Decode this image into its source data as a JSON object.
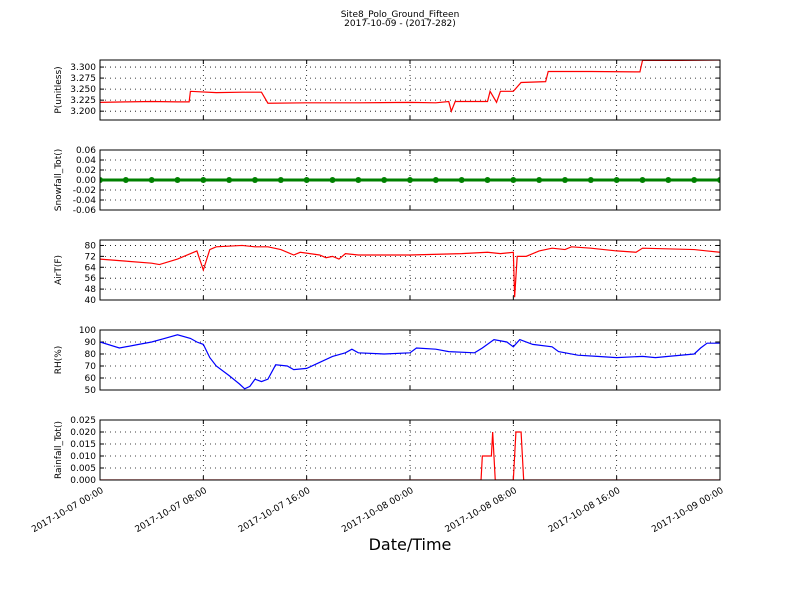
{
  "title": "Site8_Polo_Ground_Fifteen",
  "subtitle": "2017-10-09 - (2017-282)",
  "chart_data": [
    {
      "type": "line",
      "ylabel": "P(unitless)",
      "color": "#ff0000",
      "grid": true,
      "ylim": [
        3.18,
        3.316
      ],
      "yticks": [
        {
          "value": 3.2,
          "label": "3.200"
        },
        {
          "value": 3.225,
          "label": "3.225"
        },
        {
          "value": 3.25,
          "label": "3.250"
        },
        {
          "value": 3.275,
          "label": "3.275"
        },
        {
          "value": 3.3,
          "label": "3.300"
        }
      ],
      "x": [
        "2017-10-07 00:00",
        "2017-10-07 02:00",
        "2017-10-07 04:00",
        "2017-10-07 06:00",
        "2017-10-07 06:54",
        "2017-10-07 07:00",
        "2017-10-07 09:00",
        "2017-10-07 11:00",
        "2017-10-07 12:30",
        "2017-10-07 13:00",
        "2017-10-07 16:00",
        "2017-10-07 20:00",
        "2017-10-08 00:00",
        "2017-10-08 02:00",
        "2017-10-08 03:00",
        "2017-10-08 03:12",
        "2017-10-08 03:30",
        "2017-10-08 05:00",
        "2017-10-08 06:00",
        "2017-10-08 06:12",
        "2017-10-08 06:42",
        "2017-10-08 07:00",
        "2017-10-08 08:00",
        "2017-10-08 08:36",
        "2017-10-08 10:30",
        "2017-10-08 10:42",
        "2017-10-08 14:00",
        "2017-10-08 17:48",
        "2017-10-08 18:00",
        "2017-10-08 21:00",
        "2017-10-09 00:00"
      ],
      "values": [
        3.22,
        3.221,
        3.222,
        3.221,
        3.221,
        3.245,
        3.242,
        3.243,
        3.243,
        3.218,
        3.219,
        3.219,
        3.22,
        3.219,
        3.222,
        3.2,
        3.222,
        3.222,
        3.222,
        3.245,
        3.22,
        3.245,
        3.245,
        3.265,
        3.267,
        3.29,
        3.29,
        3.289,
        3.315,
        3.315,
        3.316
      ]
    },
    {
      "type": "line-markers",
      "ylabel": "Snowfall_Tot()",
      "color": "#008000",
      "grid": true,
      "ylim": [
        -0.06,
        0.06
      ],
      "yticks": [
        -0.06,
        -0.04,
        -0.02,
        {
          "value": 0,
          "label": "0.00"
        },
        0.02,
        0.04,
        0.06
      ],
      "x": [
        "2017-10-07 00:00",
        "2017-10-07 02:00",
        "2017-10-07 04:00",
        "2017-10-07 06:00",
        "2017-10-07 08:00",
        "2017-10-07 10:00",
        "2017-10-07 12:00",
        "2017-10-07 14:00",
        "2017-10-07 16:00",
        "2017-10-07 18:00",
        "2017-10-07 20:00",
        "2017-10-07 22:00",
        "2017-10-08 00:00",
        "2017-10-08 02:00",
        "2017-10-08 04:00",
        "2017-10-08 06:00",
        "2017-10-08 08:00",
        "2017-10-08 10:00",
        "2017-10-08 12:00",
        "2017-10-08 14:00",
        "2017-10-08 16:00",
        "2017-10-08 18:00",
        "2017-10-08 20:00",
        "2017-10-08 22:00",
        "2017-10-09 00:00"
      ],
      "values": [
        0,
        0,
        0,
        0,
        0,
        0,
        0,
        0,
        0,
        0,
        0,
        0,
        0,
        0,
        0,
        0,
        0,
        0,
        0,
        0,
        0,
        0,
        0,
        0,
        0
      ]
    },
    {
      "type": "line",
      "ylabel": "AirT(F)",
      "color": "#ff0000",
      "grid": true,
      "ylim": [
        40,
        84
      ],
      "yticks": [
        40,
        48,
        56,
        64,
        72,
        80
      ],
      "x": [
        "2017-10-07 00:00",
        "2017-10-07 02:00",
        "2017-10-07 04:00",
        "2017-10-07 04:36",
        "2017-10-07 06:00",
        "2017-10-07 07:30",
        "2017-10-07 08:00",
        "2017-10-07 08:30",
        "2017-10-07 09:00",
        "2017-10-07 11:00",
        "2017-10-07 12:00",
        "2017-10-07 13:00",
        "2017-10-07 14:00",
        "2017-10-07 15:00",
        "2017-10-07 15:30",
        "2017-10-07 17:00",
        "2017-10-07 17:30",
        "2017-10-07 18:00",
        "2017-10-07 18:30",
        "2017-10-07 19:00",
        "2017-10-07 20:00",
        "2017-10-08 00:00",
        "2017-10-08 04:00",
        "2017-10-08 06:00",
        "2017-10-08 07:00",
        "2017-10-08 08:00",
        "2017-10-08 08:06",
        "2017-10-08 08:18",
        "2017-10-08 09:00",
        "2017-10-08 10:00",
        "2017-10-08 11:00",
        "2017-10-08 12:00",
        "2017-10-08 12:30",
        "2017-10-08 14:00",
        "2017-10-08 16:00",
        "2017-10-08 17:30",
        "2017-10-08 18:00",
        "2017-10-08 22:00",
        "2017-10-08 23:00",
        "2017-10-09 00:00"
      ],
      "values": [
        70,
        68.5,
        67,
        66,
        70,
        76,
        62,
        77,
        79,
        80,
        79,
        79,
        77,
        73,
        75,
        73,
        71,
        72,
        70,
        74,
        73,
        73,
        74,
        75,
        74,
        75,
        42,
        72,
        72,
        76,
        78,
        77,
        79,
        78,
        76,
        75,
        78,
        77,
        76,
        75
      ]
    },
    {
      "type": "line",
      "ylabel": "RH(%)",
      "color": "#0000ff",
      "grid": true,
      "ylim": [
        50,
        100
      ],
      "yticks": [
        50,
        60,
        70,
        80,
        90,
        100
      ],
      "x": [
        "2017-10-07 00:00",
        "2017-10-07 01:30",
        "2017-10-07 03:00",
        "2017-10-07 04:00",
        "2017-10-07 05:00",
        "2017-10-07 06:00",
        "2017-10-07 07:00",
        "2017-10-07 07:30",
        "2017-10-07 08:00",
        "2017-10-07 08:30",
        "2017-10-07 09:00",
        "2017-10-07 10:00",
        "2017-10-07 10:48",
        "2017-10-07 11:12",
        "2017-10-07 11:36",
        "2017-10-07 12:00",
        "2017-10-07 12:30",
        "2017-10-07 13:00",
        "2017-10-07 13:36",
        "2017-10-07 14:30",
        "2017-10-07 15:00",
        "2017-10-07 16:00",
        "2017-10-07 17:00",
        "2017-10-07 18:00",
        "2017-10-07 19:00",
        "2017-10-07 19:30",
        "2017-10-07 20:00",
        "2017-10-07 22:00",
        "2017-10-08 00:00",
        "2017-10-08 00:30",
        "2017-10-08 02:00",
        "2017-10-08 03:00",
        "2017-10-08 05:00",
        "2017-10-08 05:36",
        "2017-10-08 06:30",
        "2017-10-08 07:30",
        "2017-10-08 08:00",
        "2017-10-08 08:30",
        "2017-10-08 09:30",
        "2017-10-08 11:00",
        "2017-10-08 11:30",
        "2017-10-08 13:00",
        "2017-10-08 14:30",
        "2017-10-08 16:00",
        "2017-10-08 18:00",
        "2017-10-08 19:00",
        "2017-10-08 20:00",
        "2017-10-08 22:00",
        "2017-10-08 22:30",
        "2017-10-08 23:00",
        "2017-10-09 00:00"
      ],
      "values": [
        90,
        85,
        88,
        90,
        93,
        96,
        93,
        90,
        88,
        77,
        70,
        62,
        55,
        51,
        53,
        59,
        57,
        59,
        71,
        70,
        67,
        68,
        73,
        78,
        81,
        84,
        81,
        80,
        81,
        85,
        84,
        82,
        81,
        85,
        92,
        90,
        86,
        92,
        88,
        86,
        82,
        79,
        78,
        77,
        78,
        77,
        78,
        80,
        85,
        89,
        89
      ]
    },
    {
      "type": "line",
      "ylabel": "Rainfall_Tot()",
      "color": "#ff0000",
      "grid": true,
      "ylim": [
        0,
        0.025
      ],
      "yticks": [
        {
          "value": 0,
          "label": "0.000"
        },
        {
          "value": 0.005,
          "label": "0.005"
        },
        {
          "value": 0.01,
          "label": "0.010"
        },
        {
          "value": 0.015,
          "label": "0.015"
        },
        {
          "value": 0.02,
          "label": "0.020"
        },
        {
          "value": 0.025,
          "label": "0.025"
        }
      ],
      "x": [
        "2017-10-07 00:00",
        "2017-10-08 05:30",
        "2017-10-08 05:36",
        "2017-10-08 06:18",
        "2017-10-08 06:24",
        "2017-10-08 06:36",
        "2017-10-08 08:00",
        "2017-10-08 08:12",
        "2017-10-08 08:36",
        "2017-10-08 08:48",
        "2017-10-09 00:00"
      ],
      "values": [
        0,
        0,
        0.01,
        0.01,
        0.02,
        0,
        0,
        0.02,
        0.02,
        0,
        0
      ],
      "xlabel": "Date/Time",
      "xlim": [
        "2017-10-07 00:00",
        "2017-10-09 00:00"
      ],
      "xticks": [
        "2017-10-07 00:00",
        "2017-10-07 08:00",
        "2017-10-07 16:00",
        "2017-10-08 00:00",
        "2017-10-08 08:00",
        "2017-10-08 16:00",
        "2017-10-09 00:00"
      ]
    }
  ]
}
